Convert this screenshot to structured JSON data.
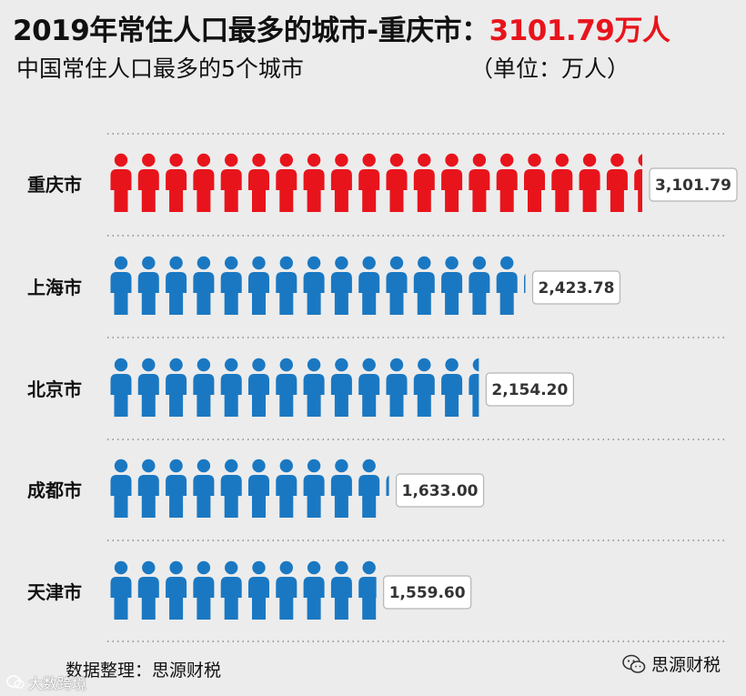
{
  "header": {
    "title_main": "2019年常住人口最多的城市-重庆市：",
    "title_highlight": "3101.79万人",
    "subtitle": "中国常住人口最多的5个城市",
    "unit": "（单位：万人）"
  },
  "chart_data": {
    "type": "bar",
    "title": "中国常住人口最多的5个城市",
    "unit": "（单位：万人）",
    "categories": [
      "重庆市",
      "上海市",
      "北京市",
      "成都市",
      "天津市"
    ],
    "values": [
      3101.79,
      2423.78,
      2154.2,
      1633.0,
      1559.6
    ],
    "value_labels": [
      "3,101.79",
      "2,423.78",
      "2,154.20",
      "1,633.00",
      "1,559.60"
    ],
    "xlim": [
      0,
      3101.79
    ],
    "grid": false,
    "legend": "none",
    "colors": {
      "highlight": "#e8141c",
      "default": "#1a78c2"
    }
  },
  "footer": {
    "source": "数据整理：思源财税",
    "brand": "思源财税",
    "brand_icon": "wechat-icon",
    "watermark": "大数跨境",
    "watermark_icon": "bubble-icon"
  }
}
